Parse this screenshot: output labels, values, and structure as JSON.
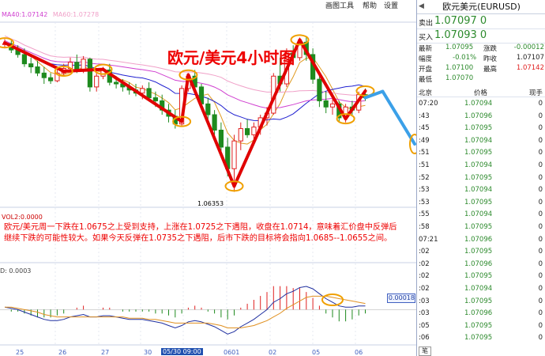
{
  "menu": {
    "items": [
      "画图工具",
      "帮助",
      "设置"
    ]
  },
  "ma_legend": {
    "ma40": {
      "label": "MA40:1.07142",
      "color": "#d040d0"
    },
    "ma60": {
      "label": "MA60:1.07278",
      "color": "#f0a0c8"
    }
  },
  "colors": {
    "up": "#e02020",
    "down": "#1e8a1e",
    "ma_short": "#e09a20",
    "ma_mid": "#2020d0",
    "ma_long": "#d040d0",
    "ma_xlong": "#f0a0c8",
    "annotation": "#e00000",
    "circle": "#f0a000",
    "forecast": "#3ba0e8",
    "macd_dif": "#2030a0",
    "macd_dea": "#e09020"
  },
  "chart_data": {
    "type": "candlestick",
    "title": "欧元/美元4小时图",
    "low_label": "1.06353",
    "ylim": [
      1.0625,
      1.0745
    ],
    "x_ticks": [
      "25",
      "26",
      "27",
      "30",
      "05/30 09:00",
      "0601",
      "02",
      "05",
      "06"
    ],
    "candles": [
      [
        1.0731,
        1.0734,
        1.0728,
        1.0731
      ],
      [
        1.0731,
        1.0733,
        1.0725,
        1.0727
      ],
      [
        1.0727,
        1.073,
        1.0722,
        1.0724
      ],
      [
        1.0724,
        1.0728,
        1.0716,
        1.0718
      ],
      [
        1.0718,
        1.0722,
        1.0712,
        1.0716
      ],
      [
        1.0716,
        1.072,
        1.071,
        1.0712
      ],
      [
        1.0712,
        1.0716,
        1.0705,
        1.0709
      ],
      [
        1.0709,
        1.0712,
        1.0705,
        1.0707
      ],
      [
        1.0707,
        1.0714,
        1.0706,
        1.0712
      ],
      [
        1.0712,
        1.0718,
        1.071,
        1.0715
      ],
      [
        1.0715,
        1.0722,
        1.0713,
        1.0719
      ],
      [
        1.0719,
        1.0724,
        1.0712,
        1.0714
      ],
      [
        1.0714,
        1.0723,
        1.0712,
        1.0721
      ],
      [
        1.0721,
        1.0722,
        1.07,
        1.0703
      ],
      [
        1.0703,
        1.0713,
        1.07,
        1.071
      ],
      [
        1.071,
        1.0716,
        1.0708,
        1.0714
      ],
      [
        1.0714,
        1.0718,
        1.0704,
        1.0706
      ],
      [
        1.0706,
        1.071,
        1.0702,
        1.0705
      ],
      [
        1.0705,
        1.0708,
        1.07,
        1.0703
      ],
      [
        1.0703,
        1.0706,
        1.0698,
        1.0701
      ],
      [
        1.0701,
        1.0705,
        1.0697,
        1.0699
      ],
      [
        1.0699,
        1.0704,
        1.0695,
        1.0702
      ],
      [
        1.0702,
        1.0706,
        1.0694,
        1.0696
      ],
      [
        1.0696,
        1.07,
        1.069,
        1.0694
      ],
      [
        1.0694,
        1.0698,
        1.0685,
        1.0688
      ],
      [
        1.0688,
        1.0692,
        1.068,
        1.0684
      ],
      [
        1.0684,
        1.0688,
        1.0676,
        1.0679
      ],
      [
        1.0679,
        1.0704,
        1.0678,
        1.0702
      ],
      [
        1.0702,
        1.0712,
        1.07,
        1.071
      ],
      [
        1.071,
        1.0714,
        1.07,
        1.0703
      ],
      [
        1.0703,
        1.0705,
        1.069,
        1.0692
      ],
      [
        1.0692,
        1.0696,
        1.0682,
        1.0685
      ],
      [
        1.0685,
        1.0688,
        1.0672,
        1.0675
      ],
      [
        1.0675,
        1.068,
        1.066,
        1.0664
      ],
      [
        1.0664,
        1.067,
        1.0645,
        1.065
      ],
      [
        1.065,
        1.0672,
        1.0635,
        1.0668
      ],
      [
        1.0668,
        1.068,
        1.0662,
        1.0676
      ],
      [
        1.0676,
        1.0682,
        1.067,
        1.0672
      ],
      [
        1.0672,
        1.068,
        1.0668,
        1.0677
      ],
      [
        1.0677,
        1.0685,
        1.0672,
        1.0683
      ],
      [
        1.0683,
        1.069,
        1.0678,
        1.0686
      ],
      [
        1.0686,
        1.0712,
        1.0685,
        1.071
      ],
      [
        1.071,
        1.0722,
        1.07,
        1.0705
      ],
      [
        1.0705,
        1.0728,
        1.0703,
        1.0725
      ],
      [
        1.0725,
        1.073,
        1.0718,
        1.0722
      ],
      [
        1.0722,
        1.0735,
        1.072,
        1.0732
      ],
      [
        1.0732,
        1.0736,
        1.072,
        1.0724
      ],
      [
        1.0724,
        1.0728,
        1.0705,
        1.0708
      ],
      [
        1.0708,
        1.0712,
        1.069,
        1.0694
      ],
      [
        1.0694,
        1.07,
        1.0686,
        1.069
      ],
      [
        1.069,
        1.0697,
        1.0685,
        1.0692
      ],
      [
        1.0692,
        1.0694,
        1.068,
        1.0683
      ],
      [
        1.0683,
        1.0692,
        1.068,
        1.069
      ],
      [
        1.069,
        1.0694,
        1.0685,
        1.0688
      ],
      [
        1.0688,
        1.07,
        1.0686,
        1.0698
      ],
      [
        1.0698,
        1.0702,
        1.0694,
        1.0696
      ]
    ],
    "forecast": {
      "from_index": 55,
      "to_price": 1.0666
    },
    "vol_label": "VOL2:0.0000",
    "macd": {
      "label": "D: 0.0003",
      "tag": "0.00018",
      "dif": [
        0.2,
        0.1,
        0.0,
        -0.2,
        -0.4,
        -0.6,
        -0.8,
        -0.9,
        -0.9,
        -0.8,
        -0.6,
        -0.5,
        -0.4,
        -0.6,
        -0.6,
        -0.5,
        -0.5,
        -0.6,
        -0.7,
        -0.8,
        -0.8,
        -0.8,
        -0.9,
        -1.0,
        -1.1,
        -1.3,
        -1.5,
        -1.3,
        -1.0,
        -0.9,
        -1.0,
        -1.2,
        -1.4,
        -1.7,
        -2.0,
        -1.8,
        -1.4,
        -1.1,
        -0.8,
        -0.4,
        0.0,
        0.6,
        0.9,
        1.3,
        1.5,
        1.8,
        1.9,
        1.7,
        1.3,
        0.9,
        0.6,
        0.3,
        0.2,
        0.2,
        0.3,
        0.3
      ],
      "dea": [
        0.2,
        0.2,
        0.1,
        0.0,
        -0.1,
        -0.2,
        -0.4,
        -0.5,
        -0.6,
        -0.6,
        -0.6,
        -0.6,
        -0.6,
        -0.6,
        -0.6,
        -0.6,
        -0.6,
        -0.6,
        -0.6,
        -0.7,
        -0.7,
        -0.7,
        -0.8,
        -0.8,
        -0.9,
        -1.0,
        -1.1,
        -1.1,
        -1.1,
        -1.1,
        -1.1,
        -1.1,
        -1.2,
        -1.3,
        -1.5,
        -1.5,
        -1.5,
        -1.4,
        -1.3,
        -1.1,
        -0.9,
        -0.6,
        -0.3,
        0.1,
        0.4,
        0.7,
        1.0,
        1.1,
        1.1,
        1.1,
        1.0,
        0.9,
        0.8,
        0.7,
        0.6,
        0.5
      ],
      "ylim": [
        -2.5,
        3.0
      ]
    }
  },
  "annotation": {
    "comment": "欧元/美元周一下跌在1.0675之上受到支持，上涨在1.0725之下遇阻，收盘在1.0714，意味着汇价盘中反弹后继续下跌的可能性较大。如果今天反弹在1.0735之下遇阻，后市下跌的目标将会指向1.0685--1.0655之间。"
  },
  "panel": {
    "title": "欧元美元(EURUSD)",
    "sell_label": "卖出",
    "sell_value": "1.07097 0",
    "buy_label": "买入",
    "buy_value": "1.07093 0",
    "info": [
      {
        "l1": "最新",
        "v1": "1.07095",
        "l2": "涨跌",
        "v2": "-0.00012"
      },
      {
        "l1": "幅度",
        "v1": "-0.01%",
        "l2": "昨收",
        "v2": "1.07107"
      },
      {
        "l1": "开盘",
        "v1": "1.07100",
        "l2": "最高",
        "v2": "1.07142"
      },
      {
        "l1": "最低",
        "v1": "1.07070",
        "l2": "",
        "v2": ""
      }
    ],
    "ticks_header": {
      "time": "北京",
      "price": "价格",
      "vol": "现手"
    },
    "ticks": [
      {
        "t": "07:20",
        "p": "1.07094",
        "v": "0"
      },
      {
        "t": ":43",
        "p": "1.07096",
        "v": "0"
      },
      {
        "t": ":45",
        "p": "1.07095",
        "v": "0"
      },
      {
        "t": ":49",
        "p": "1.07094",
        "v": "0"
      },
      {
        "t": ":51",
        "p": "1.07095",
        "v": "0"
      },
      {
        "t": ":51",
        "p": "1.07094",
        "v": "0"
      },
      {
        "t": ":52",
        "p": "1.07095",
        "v": "0"
      },
      {
        "t": ":53",
        "p": "1.07094",
        "v": "0"
      },
      {
        "t": ":53",
        "p": "1.07095",
        "v": "0"
      },
      {
        "t": ":55",
        "p": "1.07094",
        "v": "0"
      },
      {
        "t": ":58",
        "p": "1.07095",
        "v": "0"
      },
      {
        "t": "07:21",
        "p": "1.07096",
        "v": "0"
      },
      {
        "t": ":02",
        "p": "1.07095",
        "v": "0"
      },
      {
        "t": ":02",
        "p": "1.07096",
        "v": "0"
      },
      {
        "t": ":02",
        "p": "1.07095",
        "v": "0"
      },
      {
        "t": ":02",
        "p": "1.07094",
        "v": "0"
      },
      {
        "t": ":03",
        "p": "1.07095",
        "v": "0"
      },
      {
        "t": ":03",
        "p": "1.07096",
        "v": "0"
      },
      {
        "t": ":05",
        "p": "1.07095",
        "v": "0"
      },
      {
        "t": ":06",
        "p": "1.07095",
        "v": "0"
      }
    ],
    "bottom_btn": "笔"
  }
}
